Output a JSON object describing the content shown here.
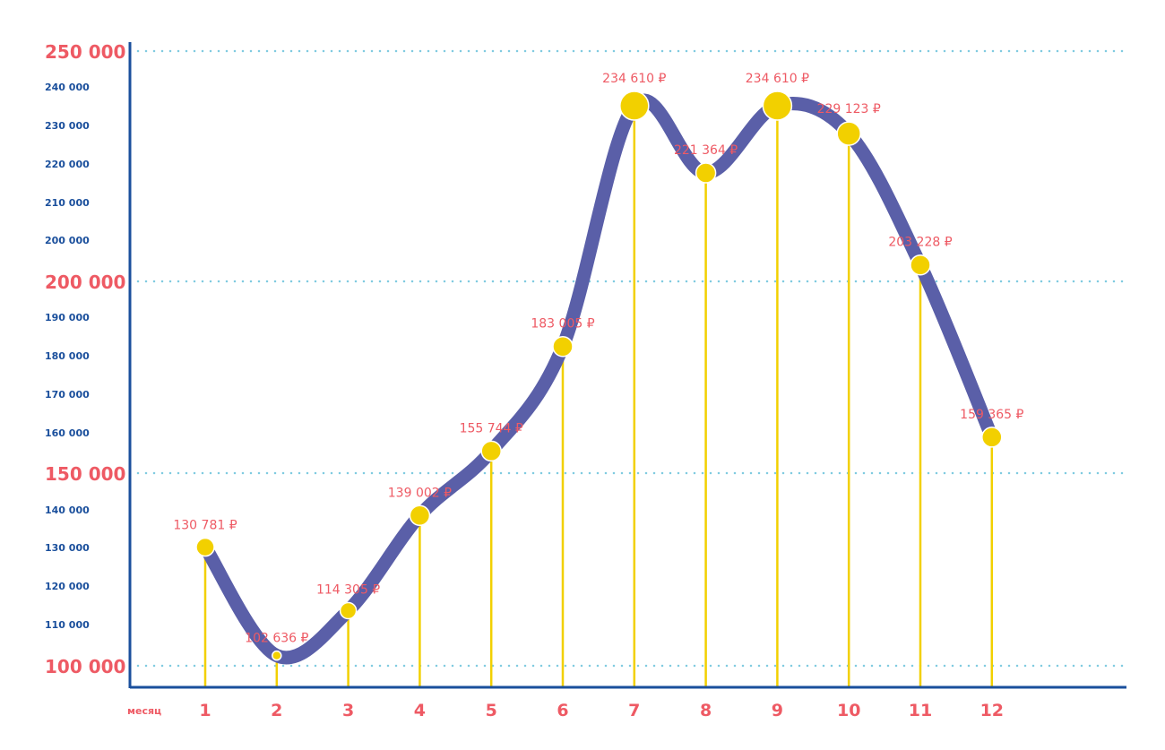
{
  "chart_data": {
    "type": "line",
    "title": "",
    "xlabel": "месяц",
    "ylabel": "",
    "x": [
      1,
      2,
      3,
      4,
      5,
      6,
      7,
      8,
      9,
      10,
      11,
      12
    ],
    "x_tick_labels": [
      "1",
      "2",
      "3",
      "4",
      "5",
      "6",
      "7",
      "8",
      "9",
      "10",
      "11",
      "12"
    ],
    "values": [
      130781,
      102636,
      114305,
      139002,
      155744,
      183005,
      234610,
      221364,
      234610,
      229123,
      203228,
      159365
    ],
    "value_labels": [
      "130 781 ₽",
      "102 636 ₽",
      "114 305 ₽",
      "139 002 ₽",
      "155 744 ₽",
      "183 005 ₽",
      "234 610 ₽",
      "221 364 ₽",
      "234 610 ₽",
      "229 123 ₽",
      "203 228 ₽",
      "159 365 ₽"
    ],
    "major_ticks": [
      {
        "value": 250000,
        "label": "250 000"
      },
      {
        "value": 200000,
        "label": "200 000"
      },
      {
        "value": 150000,
        "label": "150 000"
      },
      {
        "value": 100000,
        "label": "100 000"
      }
    ],
    "minor_tick_labels": [
      "240 000",
      "230 000",
      "220 000",
      "210 000",
      "200 000",
      "190 000",
      "180 000",
      "170 000",
      "160 000",
      "140 000",
      "130 000",
      "120 000",
      "110 000"
    ],
    "ylim": [
      95000,
      260000
    ],
    "grid": "dotted horizontal at major ticks",
    "colors": {
      "line": "#5a5fa8",
      "points": "#f2d000",
      "axis": "#1a4f9c",
      "grid": "#7fcbe0",
      "major_labels": "#ee5a64",
      "minor_labels": "#1a4f9c",
      "value_labels": "#ee5a64"
    }
  }
}
